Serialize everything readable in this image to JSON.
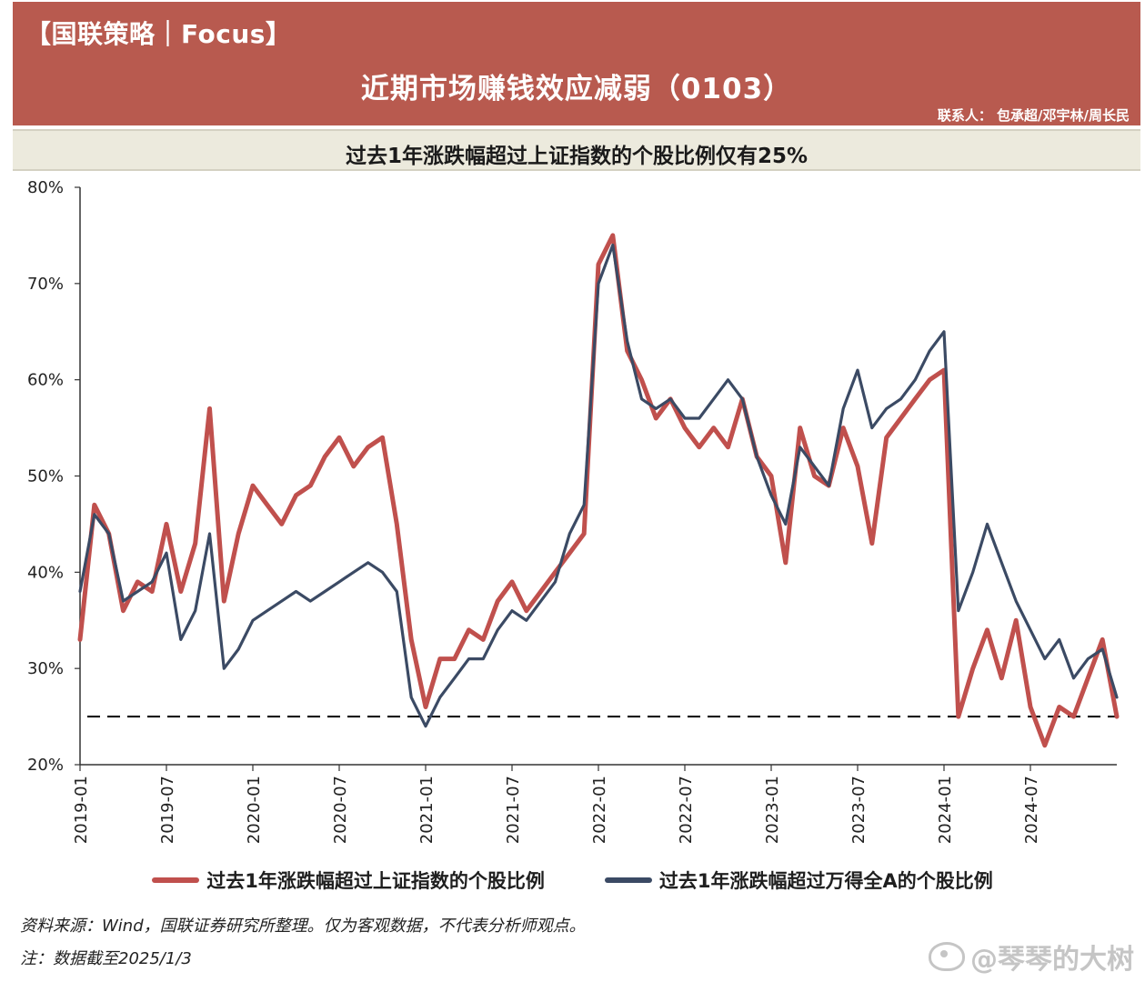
{
  "header": {
    "tag": "【国联策略｜Focus】",
    "headline": "近期市场赚钱效应减弱（0103）",
    "contact": "联系人：  包承超/邓宇林/周长民"
  },
  "colors": {
    "banner": "#b85a4f",
    "series_red": "#c0504d",
    "series_navy": "#3b4a64",
    "subbar": "#eceadd"
  },
  "chart_data": {
    "type": "line",
    "title": "过去1年涨跌幅超过上证指数的个股比例仅有25%",
    "xlabel": "",
    "ylabel": "",
    "x_ticks": [
      "2019-01",
      "2019-07",
      "2020-01",
      "2020-07",
      "2021-01",
      "2021-07",
      "2022-01",
      "2022-07",
      "2023-01",
      "2023-07",
      "2024-01",
      "2024-07"
    ],
    "x_range": [
      "2019-01",
      "2025-01"
    ],
    "ylim": [
      0.2,
      0.8
    ],
    "y_ticks": [
      "20%",
      "30%",
      "40%",
      "50%",
      "60%",
      "70%",
      "80%"
    ],
    "reference_line": {
      "y": 0.25,
      "style": "dashed"
    },
    "grid": false,
    "legend_position": "bottom",
    "x": [
      "2019-01",
      "2019-02",
      "2019-03",
      "2019-04",
      "2019-05",
      "2019-06",
      "2019-07",
      "2019-08",
      "2019-09",
      "2019-10",
      "2019-11",
      "2019-12",
      "2020-01",
      "2020-02",
      "2020-03",
      "2020-04",
      "2020-05",
      "2020-06",
      "2020-07",
      "2020-08",
      "2020-09",
      "2020-10",
      "2020-11",
      "2020-12",
      "2021-01",
      "2021-02",
      "2021-03",
      "2021-04",
      "2021-05",
      "2021-06",
      "2021-07",
      "2021-08",
      "2021-09",
      "2021-10",
      "2021-11",
      "2021-12",
      "2022-01",
      "2022-02",
      "2022-03",
      "2022-04",
      "2022-05",
      "2022-06",
      "2022-07",
      "2022-08",
      "2022-09",
      "2022-10",
      "2022-11",
      "2022-12",
      "2023-01",
      "2023-02",
      "2023-03",
      "2023-04",
      "2023-05",
      "2023-06",
      "2023-07",
      "2023-08",
      "2023-09",
      "2023-10",
      "2023-11",
      "2023-12",
      "2024-01",
      "2024-02",
      "2024-03",
      "2024-04",
      "2024-05",
      "2024-06",
      "2024-07",
      "2024-08",
      "2024-09",
      "2024-10",
      "2024-11",
      "2024-12",
      "2025-01"
    ],
    "series": [
      {
        "name": "过去1年涨跌幅超过上证指数的个股比例",
        "values": [
          0.33,
          0.47,
          0.44,
          0.36,
          0.39,
          0.38,
          0.45,
          0.38,
          0.43,
          0.57,
          0.37,
          0.44,
          0.49,
          0.47,
          0.45,
          0.48,
          0.49,
          0.52,
          0.54,
          0.51,
          0.53,
          0.54,
          0.45,
          0.33,
          0.26,
          0.31,
          0.31,
          0.34,
          0.33,
          0.37,
          0.39,
          0.36,
          0.38,
          0.4,
          0.42,
          0.44,
          0.72,
          0.75,
          0.63,
          0.6,
          0.56,
          0.58,
          0.55,
          0.53,
          0.55,
          0.53,
          0.58,
          0.52,
          0.5,
          0.41,
          0.55,
          0.5,
          0.49,
          0.55,
          0.51,
          0.43,
          0.54,
          0.56,
          0.58,
          0.6,
          0.61,
          0.25,
          0.3,
          0.34,
          0.29,
          0.35,
          0.26,
          0.22,
          0.26,
          0.25,
          0.29,
          0.33,
          0.25
        ]
      },
      {
        "name": "过去1年涨跌幅超过万得全A的个股比例",
        "values": [
          0.38,
          0.46,
          0.44,
          0.37,
          0.38,
          0.39,
          0.42,
          0.33,
          0.36,
          0.44,
          0.3,
          0.32,
          0.35,
          0.36,
          0.37,
          0.38,
          0.37,
          0.38,
          0.39,
          0.4,
          0.41,
          0.4,
          0.38,
          0.27,
          0.24,
          0.27,
          0.29,
          0.31,
          0.31,
          0.34,
          0.36,
          0.35,
          0.37,
          0.39,
          0.44,
          0.47,
          0.7,
          0.74,
          0.64,
          0.58,
          0.57,
          0.58,
          0.56,
          0.56,
          0.58,
          0.6,
          0.58,
          0.52,
          0.48,
          0.45,
          0.53,
          0.51,
          0.49,
          0.57,
          0.61,
          0.55,
          0.57,
          0.58,
          0.6,
          0.63,
          0.65,
          0.36,
          0.4,
          0.45,
          0.41,
          0.37,
          0.34,
          0.31,
          0.33,
          0.29,
          0.31,
          0.32,
          0.27
        ]
      }
    ]
  },
  "legend": [
    {
      "label": "过去1年涨跌幅超过上证指数的个股比例",
      "color": "#c0504d"
    },
    {
      "label": "过去1年涨跌幅超过万得全A的个股比例",
      "color": "#3b4a64"
    }
  ],
  "footer": {
    "source": "资料来源：Wind，国联证券研究所整理。仅为客观数据，不代表分析师观点。",
    "note": "注：数据截至2025/1/3",
    "watermark": "@琴琴的大树"
  }
}
